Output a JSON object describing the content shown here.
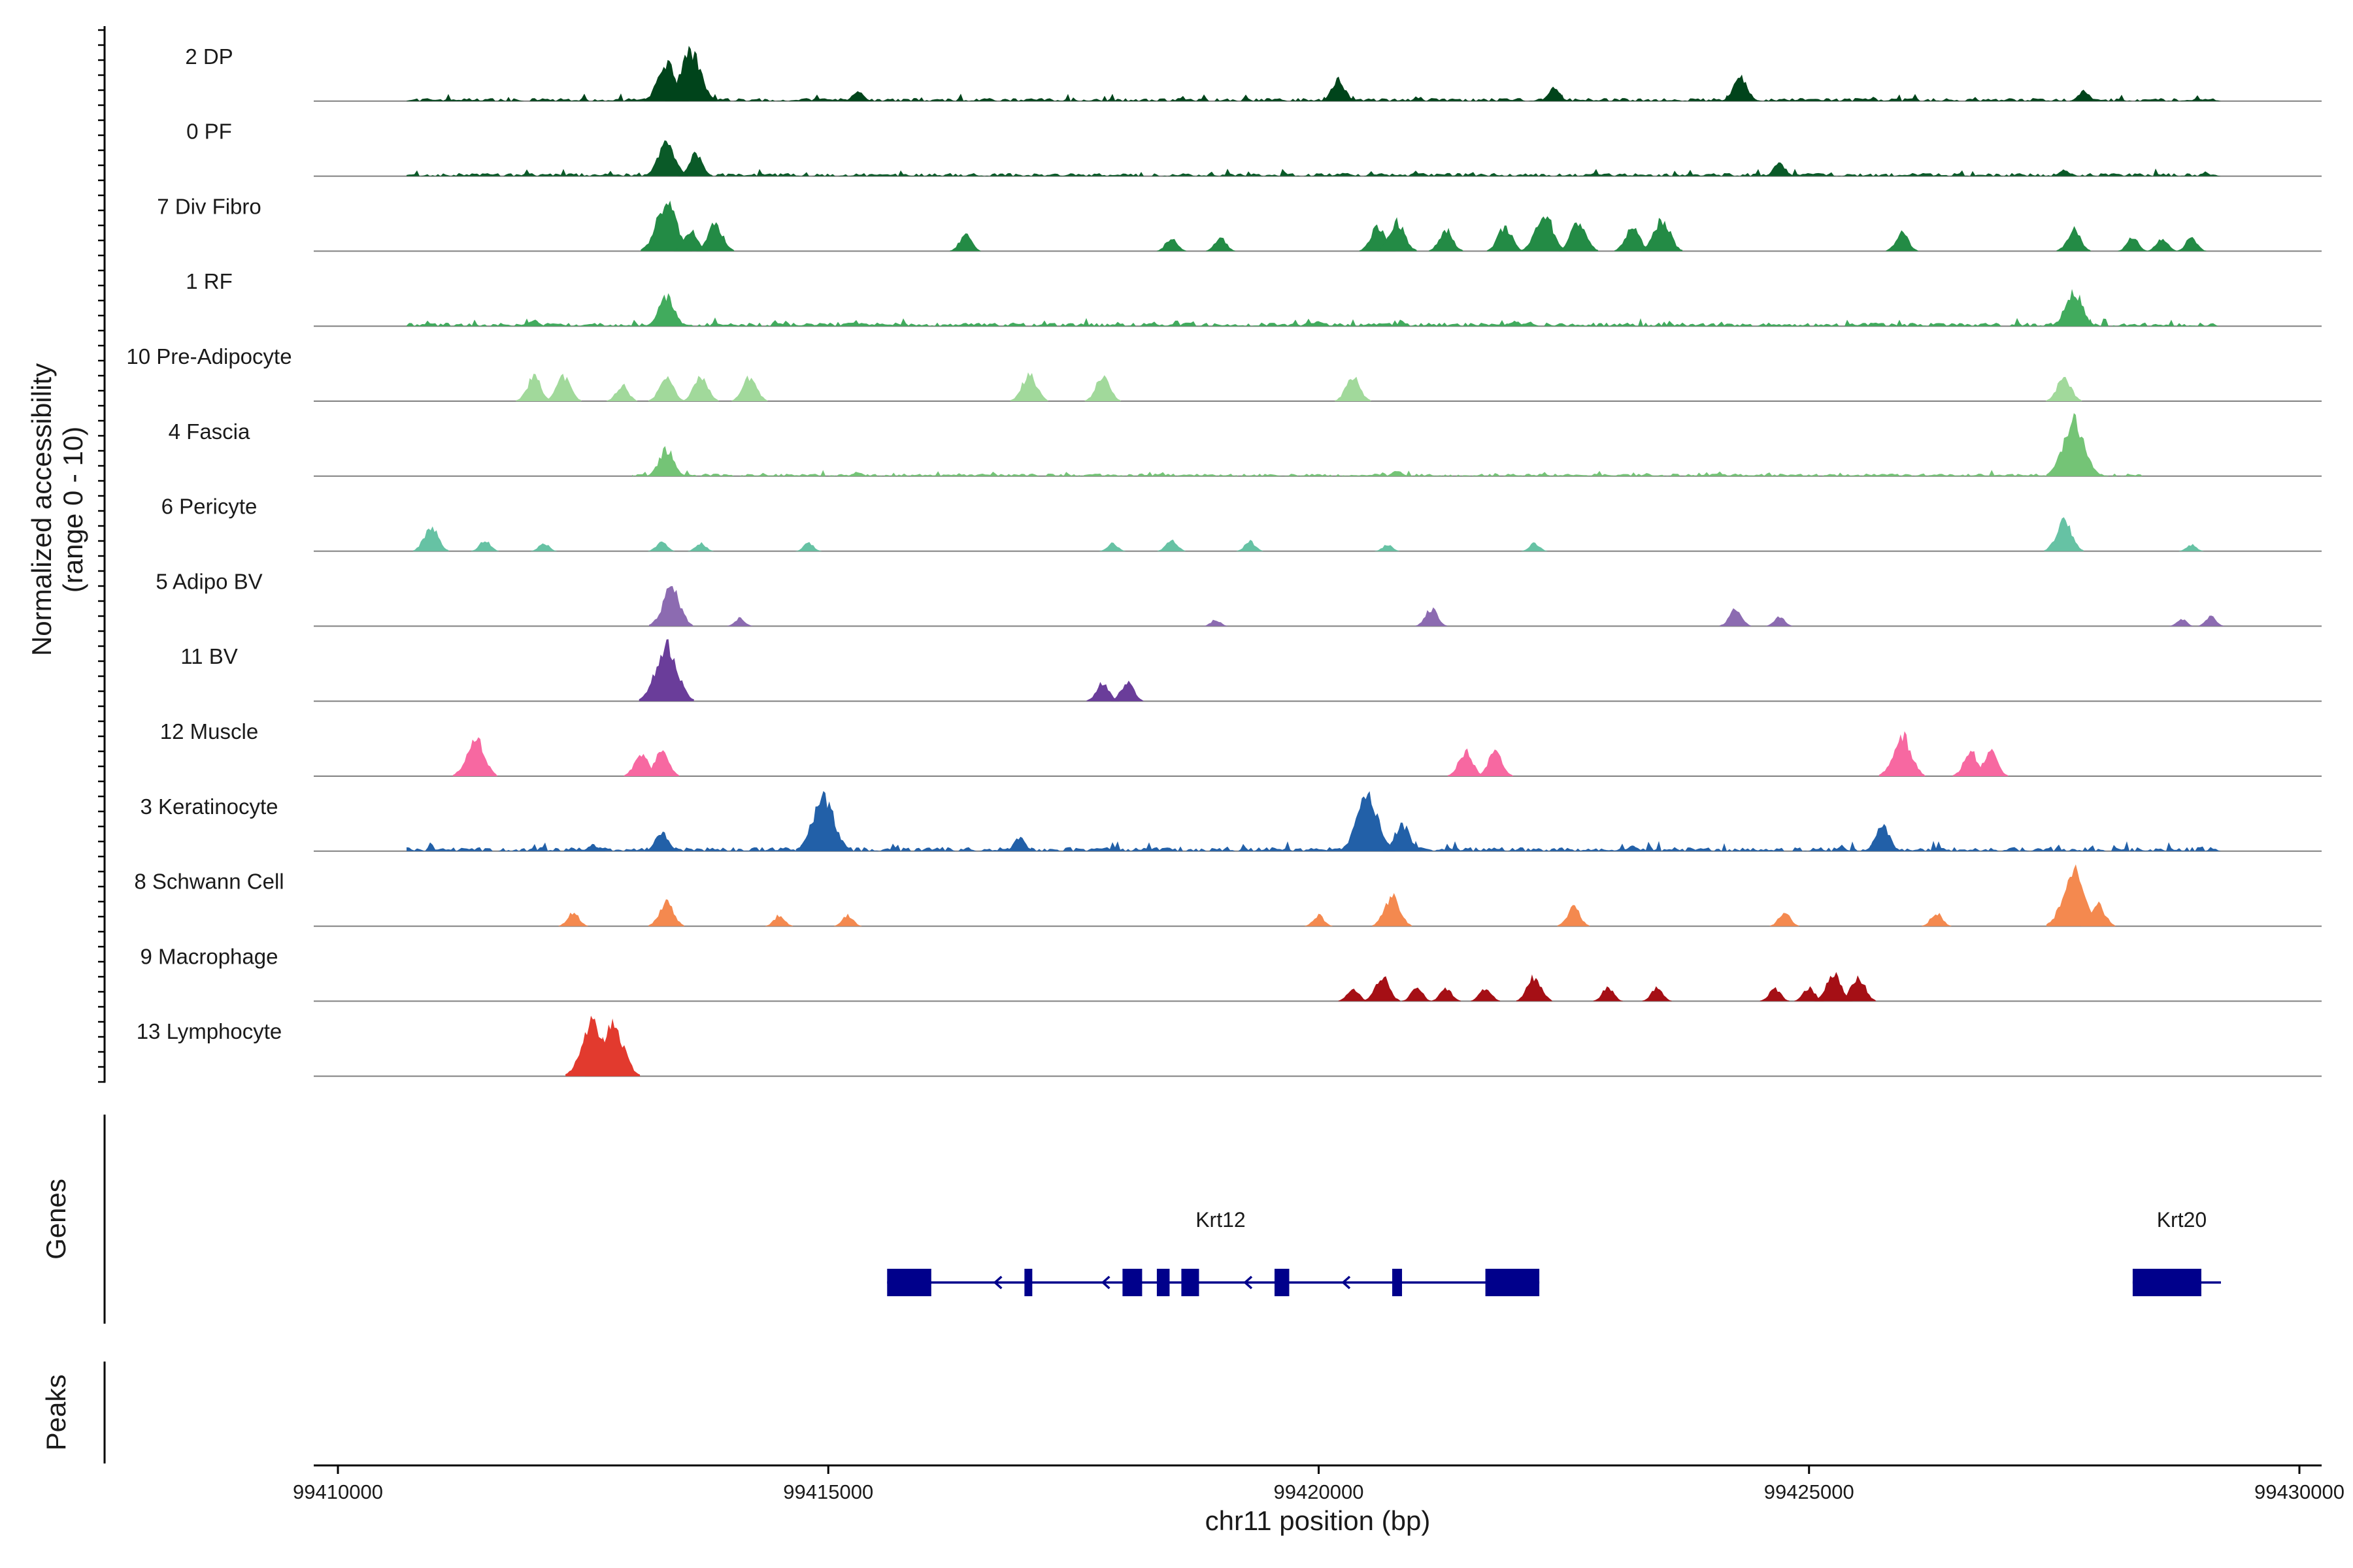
{
  "chart_data": {
    "type": "area",
    "title": "",
    "chromosome": "chr11",
    "xlabel": "chr11 position (bp)",
    "ylabel_line1": "Normalized accessibility",
    "ylabel_line2": "(range 0 - 10)",
    "ylim": [
      0,
      10
    ],
    "xlim": [
      99410000,
      99430000
    ],
    "x_ticks": [
      {
        "value": 99410000,
        "label": "99410000"
      },
      {
        "value": 99415000,
        "label": "99415000"
      },
      {
        "value": 99420000,
        "label": "99420000"
      },
      {
        "value": 99425000,
        "label": "99425000"
      },
      {
        "value": 99430000,
        "label": "99430000"
      }
    ],
    "series": [
      {
        "name": "2 DP",
        "color": "#00441b",
        "baseline": 0.3,
        "base_range": [
          99410700,
          99429200
        ],
        "peaks": [
          [
            99413350,
            7
          ],
          [
            99413600,
            9
          ],
          [
            99420200,
            4
          ],
          [
            99424300,
            4.5
          ],
          [
            99422400,
            2.5
          ],
          [
            99427800,
            2
          ],
          [
            99415300,
            2
          ]
        ]
      },
      {
        "name": "0 PF",
        "color": "#0a5a28",
        "baseline": 0.3,
        "base_range": [
          99410700,
          99429200
        ],
        "peaks": [
          [
            99413350,
            6.5
          ],
          [
            99413650,
            4
          ],
          [
            99424700,
            2.5
          ],
          [
            99427600,
            1.2
          ]
        ]
      },
      {
        "name": "7 Div Fibro",
        "color": "#238b45",
        "baseline": 0,
        "base_range": [],
        "peaks": [
          [
            99413350,
            9
          ],
          [
            99413600,
            4
          ],
          [
            99413850,
            5
          ],
          [
            99416400,
            3
          ],
          [
            99418500,
            2.5
          ],
          [
            99419000,
            2.5
          ],
          [
            99420600,
            4.5
          ],
          [
            99420800,
            5.5
          ],
          [
            99421300,
            4
          ],
          [
            99421900,
            4.5
          ],
          [
            99422300,
            7
          ],
          [
            99422650,
            5.5
          ],
          [
            99423200,
            4.5
          ],
          [
            99423500,
            6
          ],
          [
            99425950,
            3.5
          ],
          [
            99427700,
            4
          ],
          [
            99428300,
            2.5
          ],
          [
            99428600,
            2.5
          ],
          [
            99428900,
            2.5
          ]
        ]
      },
      {
        "name": "1 RF",
        "color": "#41ab5d",
        "baseline": 0.35,
        "base_range": [
          99410700,
          99429200
        ],
        "peaks": [
          [
            99413350,
            5.5
          ],
          [
            99427700,
            6.5
          ],
          [
            99412000,
            1.2
          ],
          [
            99420000,
            1
          ],
          [
            99422000,
            1
          ]
        ]
      },
      {
        "name": "10 Pre-Adipocyte",
        "color": "#a1d99b",
        "baseline": 0,
        "base_range": [],
        "peaks": [
          [
            99412000,
            4.5
          ],
          [
            99412300,
            4.5
          ],
          [
            99412900,
            3
          ],
          [
            99413350,
            4.5
          ],
          [
            99413700,
            4.5
          ],
          [
            99414200,
            4.5
          ],
          [
            99417050,
            5
          ],
          [
            99417800,
            4.5
          ],
          [
            99420350,
            4.5
          ],
          [
            99427600,
            4.5
          ]
        ]
      },
      {
        "name": "4 Fascia",
        "color": "#74c476",
        "baseline": 0.25,
        "base_range": [
          99413000,
          99428400
        ],
        "peaks": [
          [
            99413350,
            5
          ],
          [
            99427700,
            10
          ],
          [
            99420800,
            1
          ],
          [
            99415300,
            0.8
          ]
        ]
      },
      {
        "name": "6 Pericyte",
        "color": "#66c2a4",
        "baseline": 0,
        "base_range": [],
        "peaks": [
          [
            99410950,
            4.5
          ],
          [
            99411500,
            2
          ],
          [
            99412100,
            1.5
          ],
          [
            99413300,
            1.8
          ],
          [
            99413700,
            1.5
          ],
          [
            99414800,
            1.5
          ],
          [
            99417900,
            1.5
          ],
          [
            99418500,
            2.2
          ],
          [
            99419300,
            1.8
          ],
          [
            99420700,
            1.2
          ],
          [
            99422200,
            1.5
          ],
          [
            99427600,
            5.5
          ],
          [
            99428900,
            1.2
          ]
        ]
      },
      {
        "name": "5 Adipo BV",
        "color": "#8c6bb1",
        "baseline": 0,
        "base_range": [],
        "peaks": [
          [
            99413400,
            7
          ],
          [
            99414100,
            1.5
          ],
          [
            99418950,
            1.2
          ],
          [
            99421150,
            3.2
          ],
          [
            99424250,
            3.2
          ],
          [
            99424700,
            1.8
          ],
          [
            99428800,
            1.3
          ],
          [
            99429100,
            1.8
          ]
        ]
      },
      {
        "name": "11 BV",
        "color": "#6a3d9a",
        "baseline": 0,
        "base_range": [],
        "peaks": [
          [
            99413350,
            10
          ],
          [
            99417800,
            3.5
          ],
          [
            99418050,
            3.5
          ]
        ]
      },
      {
        "name": "12 Muscle",
        "color": "#f768a1",
        "baseline": 0,
        "base_range": [],
        "peaks": [
          [
            99411400,
            7
          ],
          [
            99413100,
            4.5
          ],
          [
            99413300,
            4.5
          ],
          [
            99421500,
            4.5
          ],
          [
            99421800,
            4.5
          ],
          [
            99425950,
            7.5
          ],
          [
            99426650,
            4.5
          ],
          [
            99426850,
            4.5
          ]
        ]
      },
      {
        "name": "3 Keratinocyte",
        "color": "#2260a8",
        "baseline": 0.4,
        "base_range": [
          99410700,
          99429200
        ],
        "peaks": [
          [
            99414950,
            10
          ],
          [
            99413300,
            3.5
          ],
          [
            99420500,
            10
          ],
          [
            99420850,
            5
          ],
          [
            99425750,
            4.5
          ],
          [
            99416950,
            2.5
          ],
          [
            99412600,
            1.2
          ],
          [
            99423200,
            1
          ]
        ]
      },
      {
        "name": "8 Schwann Cell",
        "color": "#f4894f",
        "baseline": 0,
        "base_range": [],
        "peaks": [
          [
            99412400,
            2.5
          ],
          [
            99413350,
            4.5
          ],
          [
            99414500,
            2
          ],
          [
            99415200,
            2
          ],
          [
            99420000,
            2
          ],
          [
            99420750,
            5.5
          ],
          [
            99422600,
            3.5
          ],
          [
            99424750,
            2.5
          ],
          [
            99426300,
            2.5
          ],
          [
            99427700,
            10
          ],
          [
            99427950,
            4
          ]
        ]
      },
      {
        "name": "9 Macrophage",
        "color": "#a50f15",
        "baseline": 0,
        "base_range": [],
        "peaks": [
          [
            99420350,
            2.5
          ],
          [
            99420650,
            4.5
          ],
          [
            99421000,
            2.5
          ],
          [
            99421300,
            2.5
          ],
          [
            99421700,
            2.5
          ],
          [
            99422200,
            4.5
          ],
          [
            99422950,
            2.5
          ],
          [
            99423450,
            2.5
          ],
          [
            99424650,
            2.5
          ],
          [
            99425000,
            2.5
          ],
          [
            99425250,
            5
          ],
          [
            99425500,
            4.5
          ]
        ]
      },
      {
        "name": "13 Lymphocyte",
        "color": "#e23a2e",
        "baseline": 0,
        "base_range": [],
        "peaks": [
          [
            99412600,
            10
          ],
          [
            99412800,
            10
          ]
        ]
      }
    ],
    "genes_label": "Genes",
    "peaks_label": "Peaks",
    "genes": [
      {
        "name": "Krt12",
        "start": 99415600,
        "end": 99422250,
        "strand": "-",
        "label_pos": 99419000,
        "exons": [
          [
            99415600,
            99416050
          ],
          [
            99417000,
            99417080
          ],
          [
            99418000,
            99418200
          ],
          [
            99418350,
            99418480
          ],
          [
            99418600,
            99418780
          ],
          [
            99419550,
            99419700
          ],
          [
            99420750,
            99420850
          ],
          [
            99421700,
            99422250
          ]
        ],
        "arrows": [
          99416700,
          99417800,
          99419250,
          99420250
        ]
      },
      {
        "name": "Krt20",
        "start": 99428300,
        "end": 99429200,
        "strand": "-",
        "label_pos": 99428800,
        "exons": [
          [
            99428300,
            99429000
          ]
        ],
        "arrows": []
      }
    ]
  }
}
